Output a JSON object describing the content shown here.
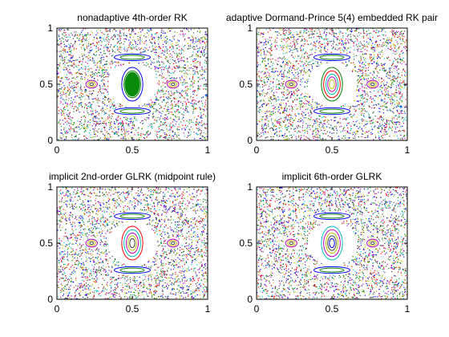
{
  "chart_data": [
    {
      "type": "scatter",
      "title": "nonadaptive 4th-order RK",
      "xlabel": "",
      "ylabel": "",
      "xlim": [
        0,
        1
      ],
      "ylim": [
        0,
        1
      ],
      "xticks": [
        "0",
        "0.5",
        "1"
      ],
      "yticks": [
        "0",
        "0.5",
        "1"
      ],
      "grid": false,
      "center_fill": "#0a8a0a"
    },
    {
      "type": "scatter",
      "title": "adaptive Dormand-Prince 5(4) embedded RK pair",
      "xlabel": "",
      "ylabel": "",
      "xlim": [
        0,
        1
      ],
      "ylim": [
        0,
        1
      ],
      "xticks": [
        "0",
        "0.5",
        "1"
      ],
      "yticks": [
        "0",
        "0.5",
        "1"
      ],
      "grid": false,
      "center_fill": ""
    },
    {
      "type": "scatter",
      "title": "implicit 2nd-order GLRK (midpoint rule)",
      "xlabel": "",
      "ylabel": "",
      "xlim": [
        0,
        1
      ],
      "ylim": [
        0,
        1
      ],
      "xticks": [
        "0",
        "0.5",
        "1"
      ],
      "yticks": [
        "0",
        "0.5",
        "1"
      ],
      "grid": false,
      "center_fill": ""
    },
    {
      "type": "scatter",
      "title": "implicit 6th-order GLRK",
      "xlabel": "",
      "ylabel": "",
      "xlim": [
        0,
        1
      ],
      "ylim": [
        0,
        1
      ],
      "xticks": [
        "0",
        "0.5",
        "1"
      ],
      "yticks": [
        "0",
        "0.5",
        "1"
      ],
      "grid": false,
      "center_fill": ""
    }
  ],
  "colors": {
    "series": [
      "#0000ff",
      "#008000",
      "#ff0000",
      "#00bfbf",
      "#bf00bf",
      "#bfbf00",
      "#404040"
    ],
    "axes": "#000000"
  }
}
